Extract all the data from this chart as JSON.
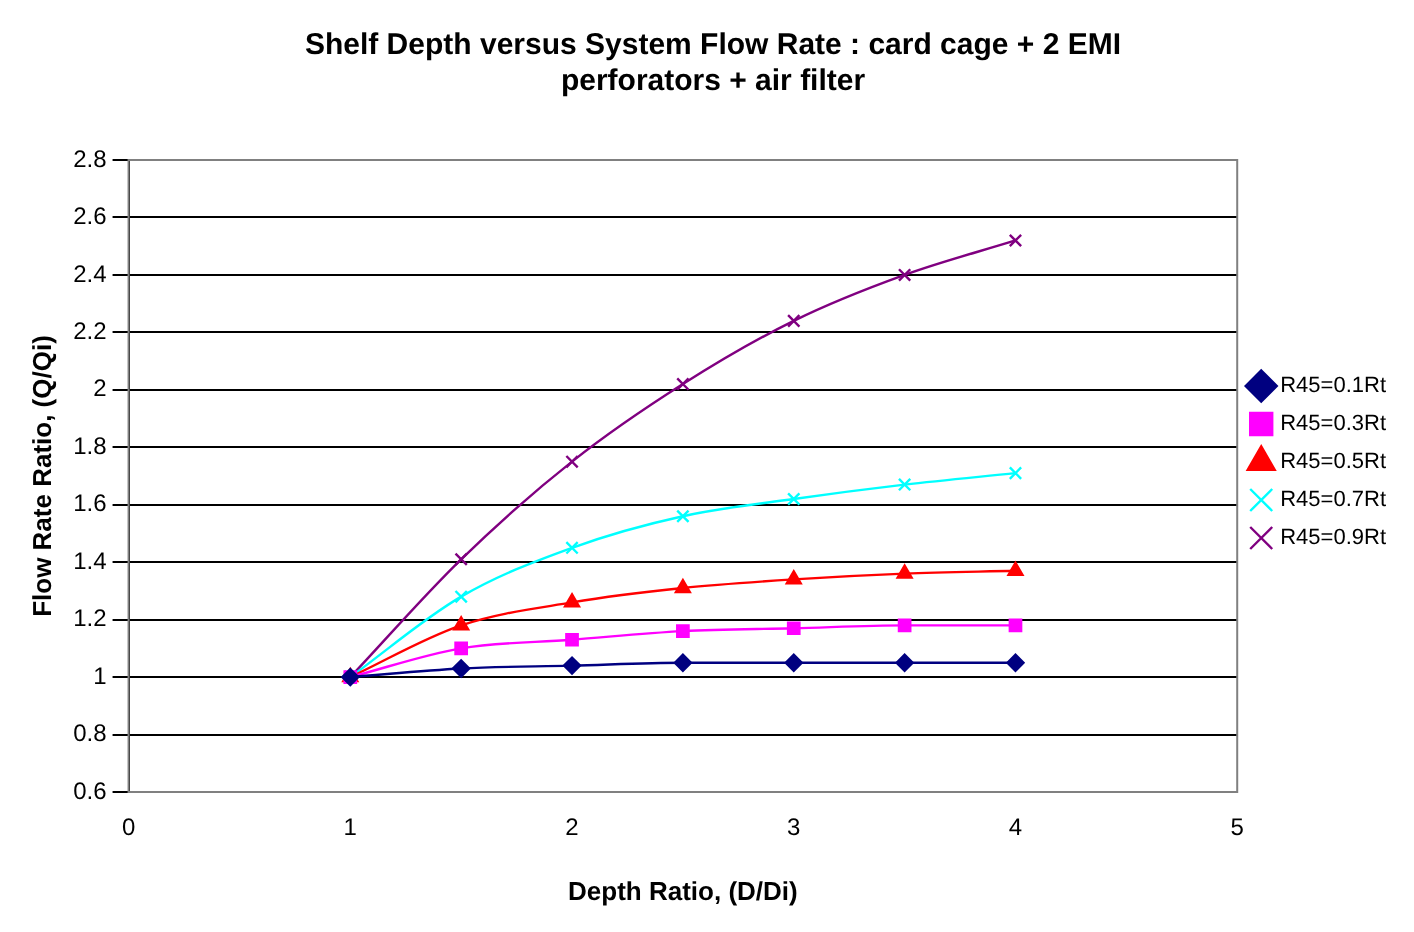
{
  "chart_data": {
    "type": "line",
    "title": "Shelf Depth versus System Flow Rate : card cage + 2 EMI perforators + air filter",
    "xlabel": "Depth Ratio, (D/Di)",
    "ylabel": "Flow Rate Ratio, (Q/Qi)",
    "x": [
      1,
      1.5,
      2,
      2.5,
      3,
      3.5,
      4
    ],
    "series": [
      {
        "name": "R45=0.1Rt",
        "color": "#000080",
        "marker": "diamond",
        "values": [
          1,
          1.03,
          1.04,
          1.05,
          1.05,
          1.05,
          1.05
        ]
      },
      {
        "name": "R45=0.3Rt",
        "color": "#ff00ff",
        "marker": "square",
        "values": [
          1,
          1.1,
          1.13,
          1.16,
          1.17,
          1.18,
          1.18
        ]
      },
      {
        "name": "R45=0.5Rt",
        "color": "#ff0000",
        "marker": "triangle",
        "values": [
          1,
          1.18,
          1.26,
          1.31,
          1.34,
          1.36,
          1.37
        ]
      },
      {
        "name": "R45=0.7Rt",
        "color": "#00ffff",
        "marker": "cross",
        "values": [
          1,
          1.28,
          1.45,
          1.56,
          1.62,
          1.67,
          1.71
        ]
      },
      {
        "name": "R45=0.9Rt",
        "color": "#800080",
        "marker": "cross",
        "values": [
          1,
          1.41,
          1.75,
          2.02,
          2.24,
          2.4,
          2.52
        ]
      }
    ],
    "xlim": [
      0,
      5
    ],
    "xticks": [
      0,
      1,
      2,
      3,
      4,
      5
    ],
    "ylim": [
      0.6,
      2.8
    ],
    "yticks": [
      0.6,
      0.8,
      1,
      1.2,
      1.4,
      1.6,
      1.8,
      2,
      2.2,
      2.4,
      2.6,
      2.8
    ],
    "grid": "y",
    "legend": "right"
  }
}
